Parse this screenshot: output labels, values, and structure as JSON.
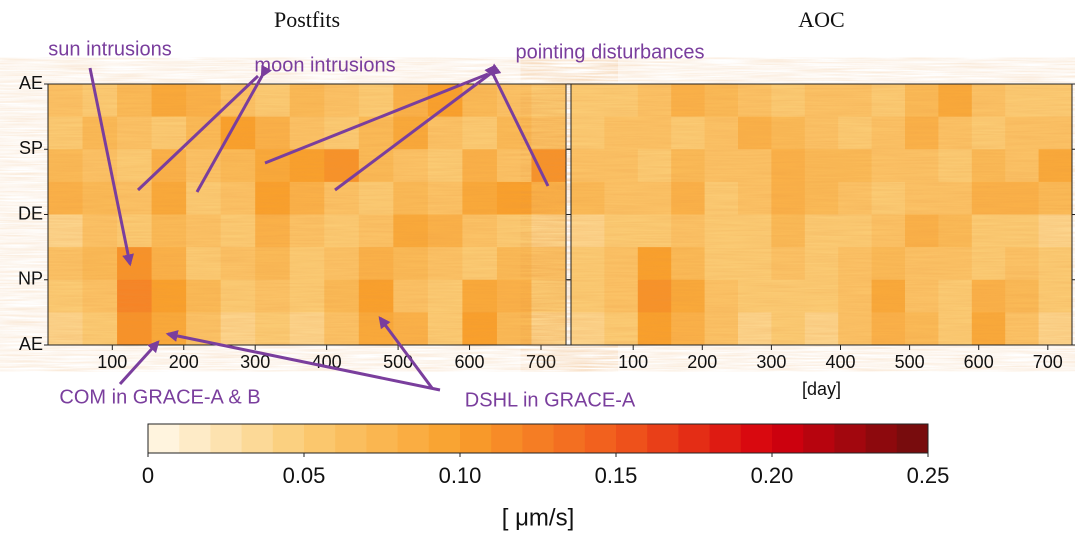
{
  "chart_data": [
    {
      "type": "heatmap",
      "title": "Postfits",
      "xlim": [
        10,
        735
      ],
      "xticks": [
        100,
        200,
        300,
        400,
        500,
        600,
        700
      ],
      "y_categories": [
        "AE",
        "SP",
        "DE",
        "NP",
        "AE"
      ],
      "z": [
        [
          0.06,
          0.05,
          0.07,
          0.09,
          0.08,
          0.06,
          0.05,
          0.07,
          0.06,
          0.05,
          0.08,
          0.1,
          0.07,
          0.06,
          0.05
        ],
        [
          0.05,
          0.07,
          0.06,
          0.05,
          0.07,
          0.1,
          0.08,
          0.06,
          0.05,
          0.07,
          0.09,
          0.06,
          0.05,
          0.07,
          0.06
        ],
        [
          0.07,
          0.06,
          0.05,
          0.08,
          0.06,
          0.07,
          0.09,
          0.1,
          0.11,
          0.07,
          0.06,
          0.05,
          0.08,
          0.06,
          0.11
        ],
        [
          0.08,
          0.07,
          0.06,
          0.09,
          0.05,
          0.06,
          0.1,
          0.08,
          0.06,
          0.05,
          0.07,
          0.06,
          0.09,
          0.1,
          0.08
        ],
        [
          0.04,
          0.06,
          0.05,
          0.07,
          0.06,
          0.05,
          0.08,
          0.06,
          0.05,
          0.06,
          0.09,
          0.08,
          0.06,
          0.05,
          0.04
        ],
        [
          0.06,
          0.07,
          0.11,
          0.08,
          0.05,
          0.06,
          0.07,
          0.05,
          0.06,
          0.08,
          0.07,
          0.06,
          0.05,
          0.07,
          0.06
        ],
        [
          0.05,
          0.06,
          0.12,
          0.1,
          0.07,
          0.05,
          0.06,
          0.05,
          0.07,
          0.1,
          0.06,
          0.05,
          0.09,
          0.08,
          0.05
        ],
        [
          0.04,
          0.05,
          0.11,
          0.09,
          0.06,
          0.04,
          0.05,
          0.04,
          0.06,
          0.09,
          0.08,
          0.05,
          0.1,
          0.07,
          0.04
        ]
      ],
      "annotations": [
        "sun intrusions",
        "moon intrusions",
        "pointing disturbances",
        "COM in GRACE-A & B",
        "DSHL in GRACE-A"
      ]
    },
    {
      "type": "heatmap",
      "title": "AOC",
      "xlabel": "[day]",
      "xlim": [
        10,
        735
      ],
      "xticks": [
        100,
        200,
        300,
        400,
        500,
        600,
        700
      ],
      "z": [
        [
          0.05,
          0.05,
          0.06,
          0.08,
          0.07,
          0.06,
          0.05,
          0.06,
          0.06,
          0.05,
          0.07,
          0.09,
          0.06,
          0.05,
          0.05
        ],
        [
          0.05,
          0.06,
          0.06,
          0.05,
          0.06,
          0.08,
          0.07,
          0.06,
          0.05,
          0.06,
          0.08,
          0.06,
          0.05,
          0.06,
          0.06
        ],
        [
          0.06,
          0.06,
          0.05,
          0.07,
          0.06,
          0.06,
          0.08,
          0.07,
          0.07,
          0.06,
          0.06,
          0.05,
          0.07,
          0.06,
          0.09
        ],
        [
          0.07,
          0.06,
          0.06,
          0.08,
          0.05,
          0.06,
          0.08,
          0.07,
          0.06,
          0.05,
          0.06,
          0.06,
          0.08,
          0.08,
          0.07
        ],
        [
          0.04,
          0.05,
          0.05,
          0.06,
          0.05,
          0.05,
          0.07,
          0.05,
          0.05,
          0.06,
          0.08,
          0.07,
          0.05,
          0.05,
          0.04
        ],
        [
          0.05,
          0.06,
          0.1,
          0.07,
          0.05,
          0.05,
          0.06,
          0.05,
          0.06,
          0.07,
          0.06,
          0.06,
          0.05,
          0.06,
          0.05
        ],
        [
          0.05,
          0.06,
          0.11,
          0.09,
          0.06,
          0.05,
          0.05,
          0.05,
          0.06,
          0.09,
          0.06,
          0.05,
          0.08,
          0.07,
          0.05
        ],
        [
          0.04,
          0.05,
          0.1,
          0.08,
          0.06,
          0.04,
          0.05,
          0.04,
          0.06,
          0.08,
          0.07,
          0.05,
          0.09,
          0.06,
          0.04
        ]
      ]
    }
  ],
  "colorbar": {
    "clim": [
      0,
      0.25
    ],
    "colormap": [
      "#fff8ea",
      "#fbcb74",
      "#f9a02c",
      "#f15a1c",
      "#d6000e",
      "#6e0d0d"
    ],
    "ticks": [
      0,
      0.05,
      {
        "value": 0.1,
        "label": "0.10"
      },
      0.15,
      {
        "value": 0.2,
        "label": "0.20"
      },
      0.25
    ],
    "label": "[ μm/s]"
  }
}
